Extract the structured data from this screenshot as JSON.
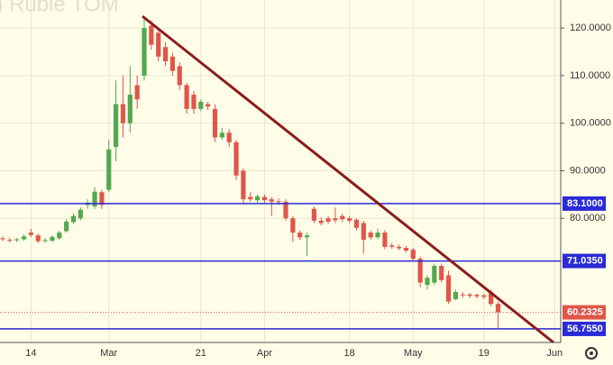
{
  "chart_data": {
    "type": "candlestick",
    "title": "n Ruble TOM",
    "categories": [
      null,
      null,
      null,
      null,
      "14",
      null,
      null,
      null,
      null,
      null,
      null,
      null,
      null,
      null,
      null,
      "Mar",
      null,
      null,
      null,
      null,
      null,
      null,
      null,
      null,
      null,
      null,
      null,
      null,
      "21",
      null,
      null,
      null,
      null,
      null,
      null,
      null,
      null,
      "Apr",
      null,
      null,
      null,
      null,
      null,
      null,
      null,
      null,
      null,
      null,
      null,
      "18",
      null,
      null,
      null,
      null,
      null,
      null,
      null,
      null,
      "May",
      null,
      null,
      null,
      null,
      null,
      null,
      null,
      null,
      null,
      "19",
      null,
      null,
      null,
      null,
      null,
      null,
      null,
      null,
      null,
      "Jun"
    ],
    "open": [
      75.8,
      75.5,
      75.4,
      75.6,
      77.0,
      76.4,
      75.2,
      75.3,
      75.8,
      77.3,
      79.2,
      80.0,
      82.8,
      82.5,
      85.5,
      86.0,
      95.0,
      104.0,
      100.0,
      108.0,
      110.0,
      120.5,
      119.0,
      116.0,
      114.0,
      112.0,
      108.0,
      106.0,
      103.0,
      104.0,
      103.0,
      97.0,
      98.0,
      96.0,
      90.0,
      84.5,
      83.8,
      84.5,
      84.0,
      83.6,
      83.5,
      80.0,
      77.0,
      76.0,
      82.0,
      79.5,
      80.0,
      80.0,
      80.5,
      80.0,
      79.7,
      79.0,
      77.0,
      76.0,
      77.0,
      74.3,
      74.0,
      73.8,
      73.4,
      71.5,
      66.0,
      66.5,
      70.0,
      68.0,
      63.0,
      64.0,
      64.0,
      63.9,
      63.8,
      64.5,
      62.0,
      null,
      null,
      null,
      null,
      null,
      null,
      null,
      null
    ],
    "high": [
      76.2,
      75.9,
      75.9,
      76.6,
      77.8,
      76.8,
      75.8,
      76.4,
      77.4,
      79.8,
      81.0,
      82.3,
      84.0,
      86.5,
      86.0,
      96.5,
      109.0,
      110.0,
      112.0,
      110.0,
      122.0,
      121.5,
      119.8,
      117.0,
      114.8,
      112.8,
      108.5,
      106.8,
      105.0,
      104.5,
      104.0,
      99.0,
      98.8,
      96.5,
      90.5,
      85.5,
      85.0,
      85.0,
      84.5,
      84.2,
      84.0,
      80.5,
      77.5,
      77.0,
      82.5,
      80.2,
      80.5,
      82.3,
      81.0,
      80.5,
      80.0,
      79.5,
      77.5,
      77.8,
      77.5,
      74.8,
      74.5,
      74.2,
      73.8,
      72.0,
      68.0,
      70.5,
      70.5,
      69.0,
      65.0,
      64.5,
      64.3,
      64.2,
      64.2,
      65.0,
      62.5,
      null,
      null,
      null,
      null,
      null,
      null,
      null,
      null
    ],
    "low": [
      75.2,
      74.9,
      75.0,
      75.3,
      76.1,
      74.8,
      74.9,
      75.0,
      75.5,
      77.0,
      78.8,
      79.6,
      82.0,
      82.0,
      82.0,
      85.5,
      92.0,
      97.0,
      98.0,
      103.0,
      109.0,
      115.5,
      113.0,
      112.0,
      110.0,
      107.0,
      102.0,
      102.0,
      102.5,
      102.8,
      96.0,
      96.5,
      95.0,
      88.0,
      83.0,
      83.5,
      83.2,
      83.2,
      80.5,
      82.8,
      79.5,
      75.0,
      75.5,
      72.0,
      79.0,
      78.5,
      78.8,
      79.0,
      79.2,
      79.0,
      77.5,
      72.5,
      75.5,
      75.6,
      73.5,
      73.6,
      73.3,
      72.8,
      71.0,
      65.5,
      65.0,
      66.0,
      66.5,
      62.0,
      62.8,
      63.3,
      63.2,
      63.1,
      63.0,
      61.5,
      56.755,
      null,
      null,
      null,
      null,
      null,
      null,
      null,
      null
    ],
    "close": [
      75.6,
      75.3,
      75.6,
      76.2,
      76.5,
      75.2,
      75.4,
      76.1,
      77.0,
      79.3,
      80.5,
      81.8,
      83.3,
      85.6,
      82.8,
      94.5,
      104.0,
      100.0,
      106.0,
      105.0,
      120.0,
      116.5,
      114.0,
      113.0,
      111.0,
      108.0,
      103.0,
      103.0,
      104.5,
      103.5,
      97.0,
      98.0,
      96.0,
      89.0,
      84.0,
      84.0,
      84.6,
      83.8,
      83.5,
      83.4,
      80.0,
      77.0,
      76.0,
      76.4,
      79.5,
      79.0,
      79.3,
      79.6,
      79.8,
      79.5,
      78.0,
      75.5,
      76.0,
      77.0,
      74.0,
      74.0,
      73.7,
      73.2,
      71.5,
      66.5,
      67.5,
      70.0,
      67.0,
      62.5,
      64.5,
      63.8,
      63.7,
      63.6,
      63.5,
      62.0,
      60.2325,
      null,
      null,
      null,
      null,
      null,
      null,
      null,
      null
    ],
    "up_color": "#53a84f",
    "down_color": "#e0564a",
    "ylim": [
      53.9,
      125.9
    ],
    "yticks": [
      {
        "value": 80,
        "label": "80.0000"
      },
      {
        "value": 90,
        "label": "90.0000"
      },
      {
        "value": 100,
        "label": "100.0000"
      },
      {
        "value": 110,
        "label": "110.0000"
      },
      {
        "value": 120,
        "label": "120.0000"
      }
    ],
    "levels": [
      {
        "value": 83.1,
        "label": "83.1000"
      },
      {
        "value": 71.035,
        "label": "71.0350"
      },
      {
        "value": 56.755,
        "label": "56.7550"
      }
    ],
    "level_color": "#2a2ad6",
    "last_price": {
      "value": 60.2325,
      "label": "60.2325"
    },
    "grid": true
  }
}
